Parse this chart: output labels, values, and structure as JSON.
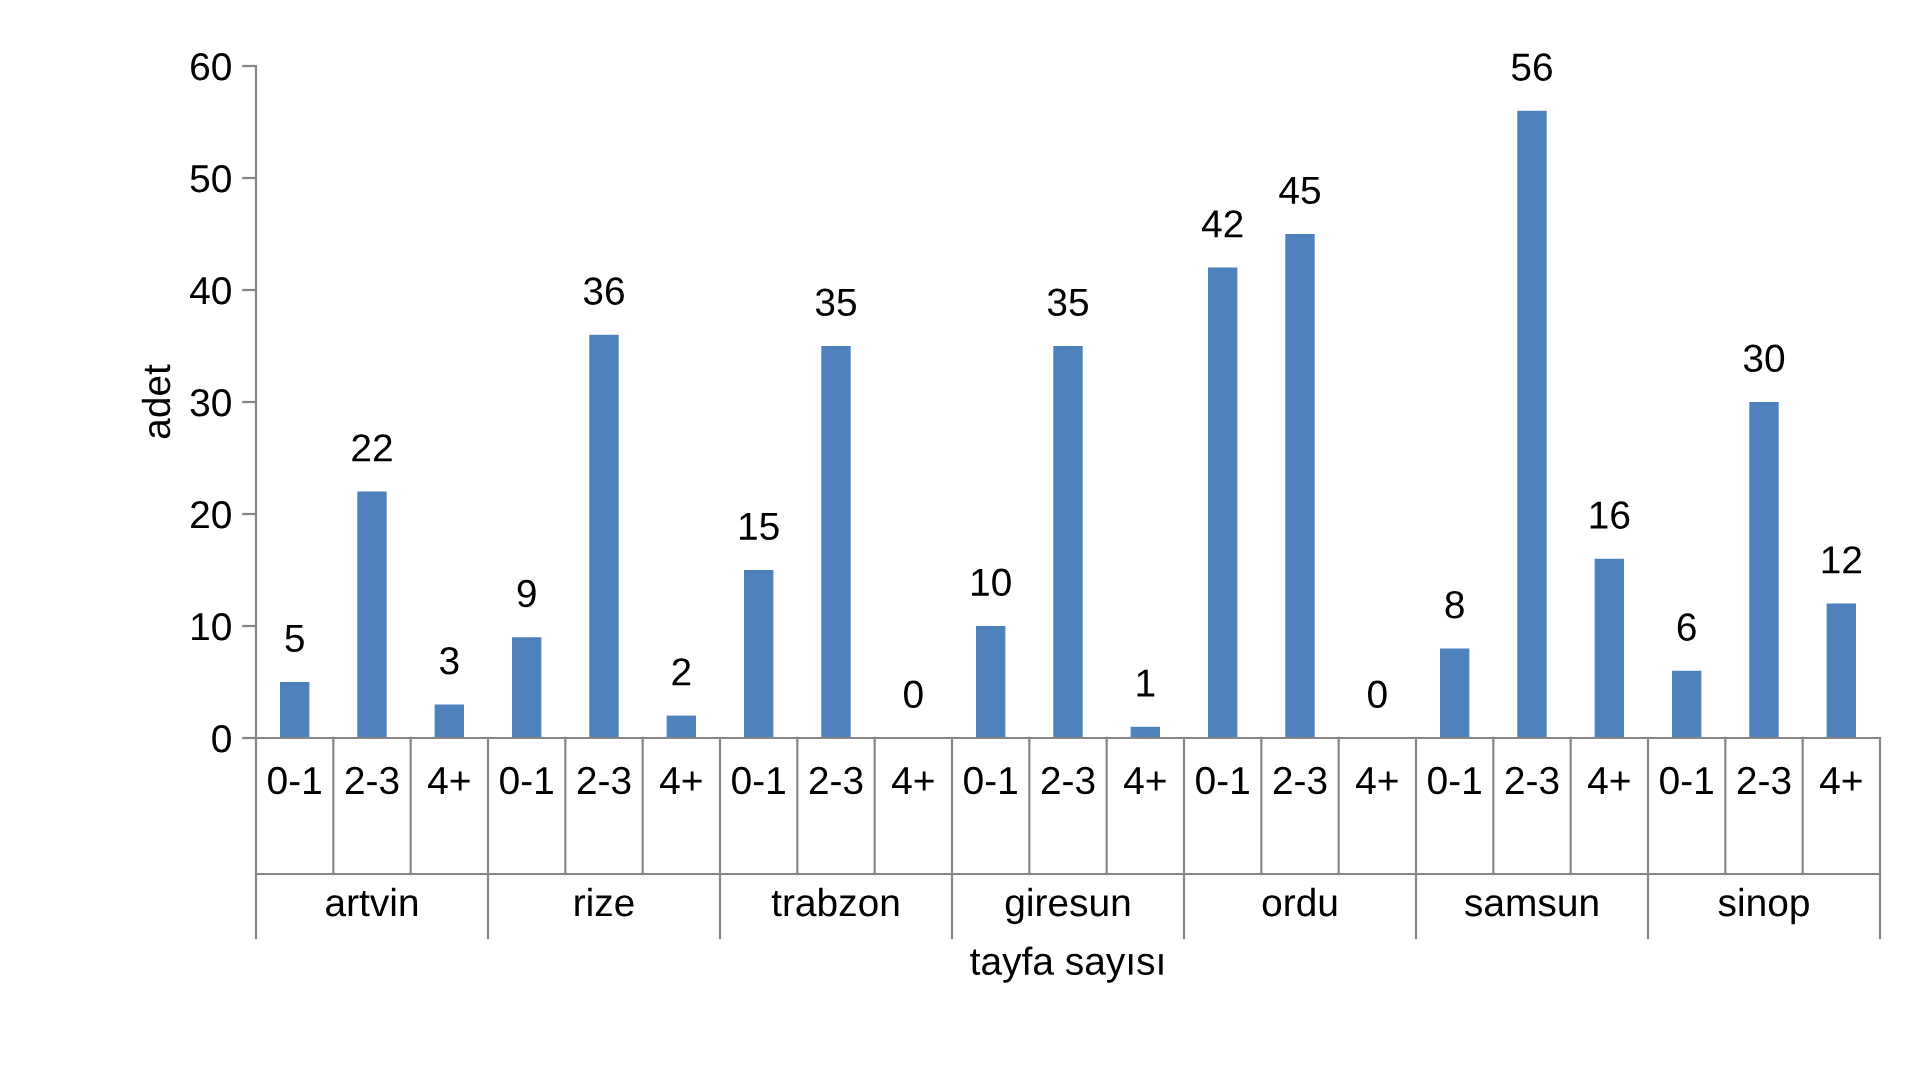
{
  "chart_data": {
    "type": "bar",
    "xlabel": "tayfa sayısı",
    "ylabel": "adet",
    "categories": [
      "0-1",
      "2-3",
      "4+",
      "0-1",
      "2-3",
      "4+",
      "0-1",
      "2-3",
      "4+",
      "0-1",
      "2-3",
      "4+",
      "0-1",
      "2-3",
      "4+",
      "0-1",
      "2-3",
      "4+",
      "0-1",
      "2-3",
      "4+"
    ],
    "values": [
      5,
      22,
      3,
      9,
      36,
      2,
      15,
      35,
      0,
      10,
      35,
      1,
      42,
      45,
      0,
      8,
      56,
      16,
      6,
      30,
      12
    ],
    "color": "#4f81bd",
    "ylim": [
      0,
      60
    ],
    "yticks": [
      0,
      10,
      20,
      30,
      40,
      50,
      60
    ],
    "grid": false,
    "data_labels": true,
    "annotations": [
      "artvin",
      "rize",
      "trabzon",
      "giresun",
      "ordu",
      "samsun",
      "sinop"
    ]
  }
}
